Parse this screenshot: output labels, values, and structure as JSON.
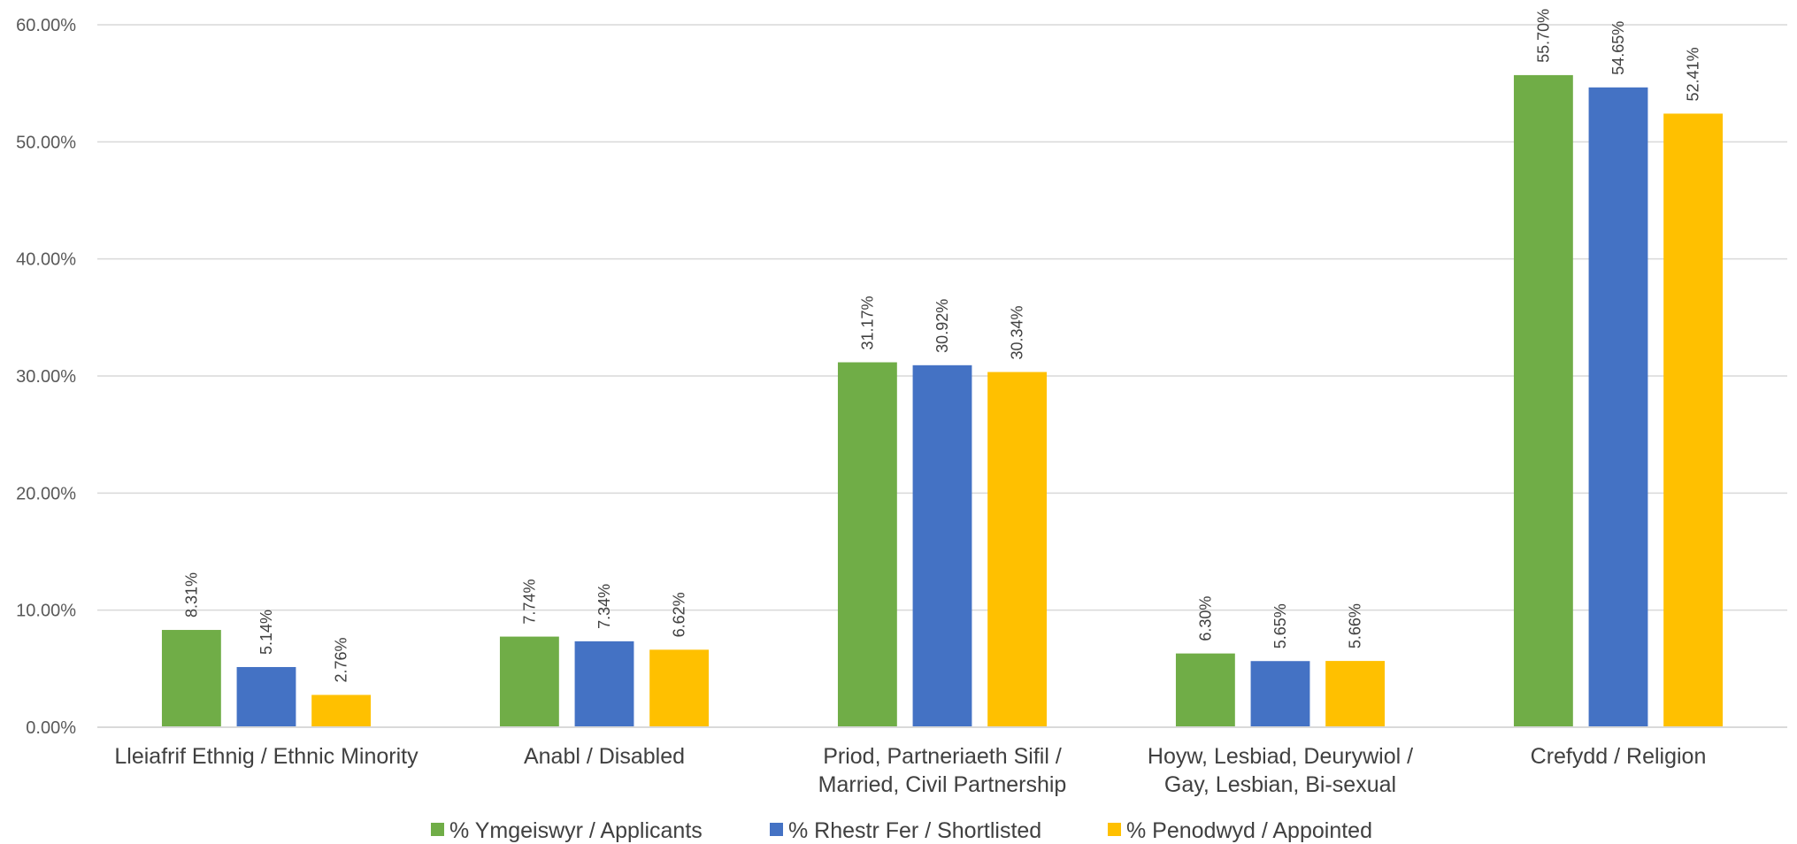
{
  "chart_data": {
    "type": "bar",
    "title": "",
    "xlabel": "",
    "ylabel": "",
    "ylim": [
      0,
      60
    ],
    "y_tick_step": 10,
    "y_tick_labels": [
      "0.00%",
      "10.00%",
      "20.00%",
      "30.00%",
      "40.00%",
      "50.00%",
      "60.00%"
    ],
    "grid": true,
    "legend_position": "bottom",
    "categories": [
      [
        "Lleiafrif Ethnig / Ethnic Minority"
      ],
      [
        "Anabl / Disabled"
      ],
      [
        "Priod, Partneriaeth Sifil /",
        "Married, Civil Partnership"
      ],
      [
        "Hoyw, Lesbiad, Deurywiol /",
        "Gay, Lesbian, Bi-sexual"
      ],
      [
        "Crefydd / Religion"
      ]
    ],
    "series": [
      {
        "name": "% Ymgeiswyr / Applicants",
        "color": "#70ad47",
        "values": [
          8.31,
          7.74,
          31.17,
          6.3,
          55.7
        ],
        "labels": [
          "8.31%",
          "7.74%",
          "31.17%",
          "6.30%",
          "55.70%"
        ]
      },
      {
        "name": "% Rhestr Fer / Shortlisted",
        "color": "#4472c4",
        "values": [
          5.14,
          7.34,
          30.92,
          5.65,
          54.65
        ],
        "labels": [
          "5.14%",
          "7.34%",
          "30.92%",
          "5.65%",
          "54.65%"
        ]
      },
      {
        "name": "% Penodwyd / Appointed",
        "color": "#ffc000",
        "values": [
          2.76,
          6.62,
          30.34,
          5.66,
          52.41
        ],
        "labels": [
          "2.76%",
          "6.62%",
          "30.34%",
          "5.66%",
          "52.41%"
        ]
      }
    ]
  }
}
